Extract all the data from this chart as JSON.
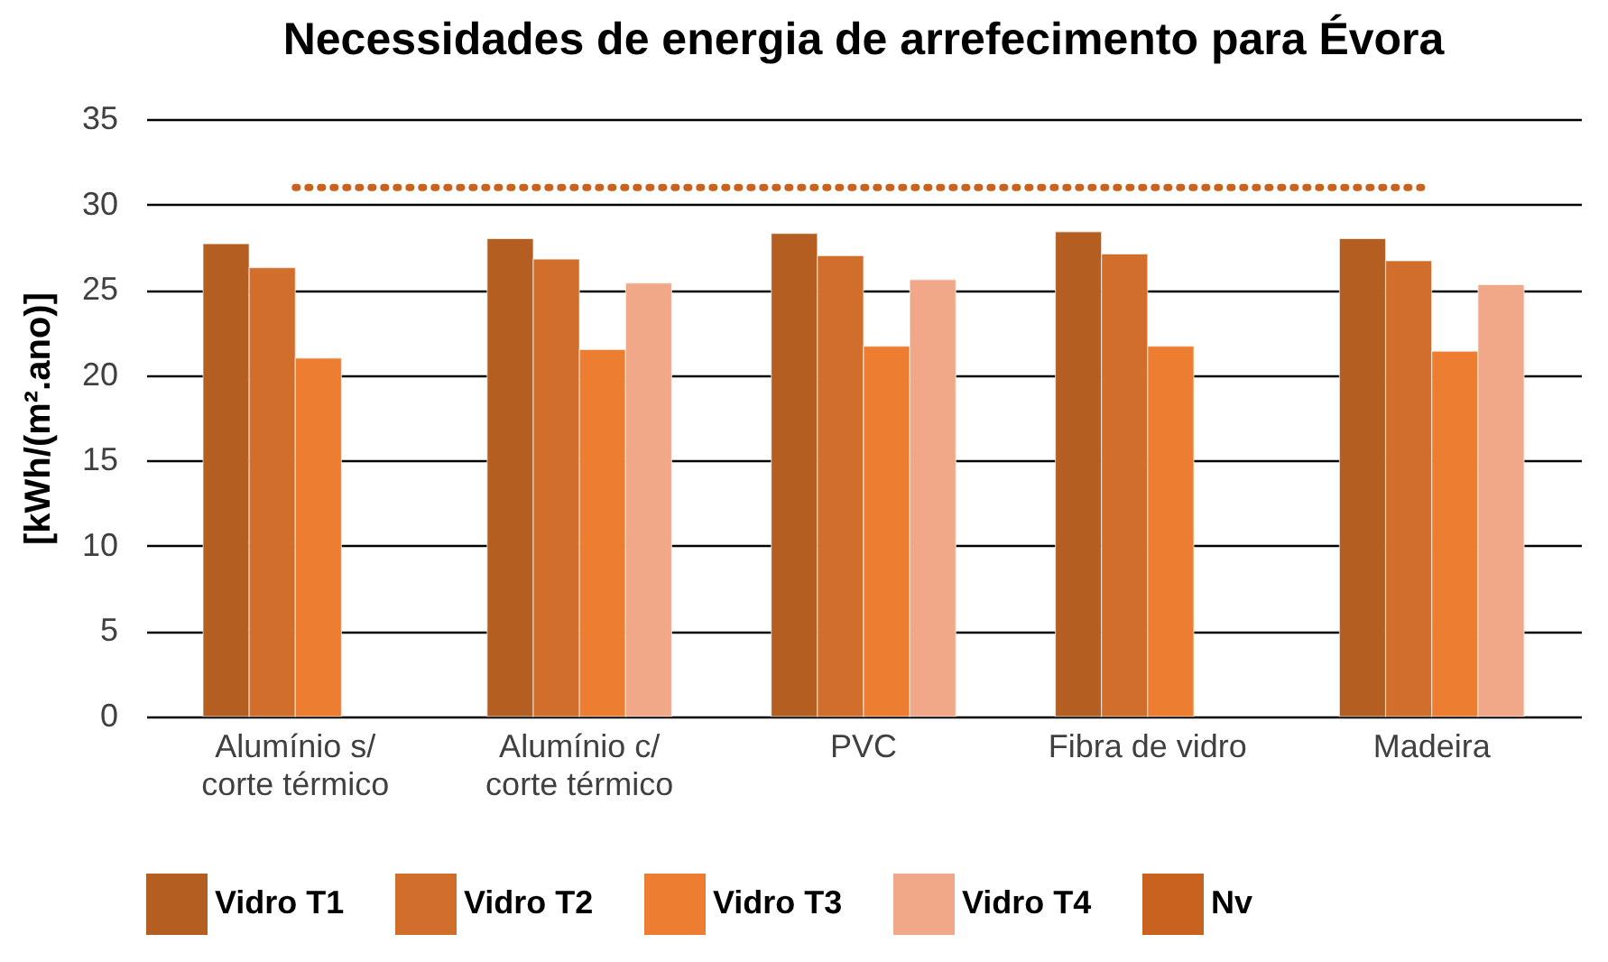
{
  "chart_data": {
    "type": "bar",
    "title": "Necessidades de energia de arrefecimento para  Évora",
    "ylabel": "[kWh/(m².ano)]",
    "categories": [
      "Alumínio s/ corte térmico",
      "Alumínio c/ corte térmico",
      "PVC",
      "Fibra de vidro",
      "Madeira"
    ],
    "series": [
      {
        "name": "Vidro T1",
        "color": "#b45e22",
        "values": [
          27.7,
          28.0,
          28.3,
          28.4,
          28.0
        ]
      },
      {
        "name": "Vidro T2",
        "color": "#d26e2b",
        "values": [
          26.3,
          26.8,
          27.0,
          27.1,
          26.7
        ]
      },
      {
        "name": "Vidro T3",
        "color": "#ec7d31",
        "values": [
          21.0,
          21.5,
          21.7,
          21.7,
          21.4
        ]
      },
      {
        "name": "Vidro T4",
        "color": "#f0a889",
        "values": [
          null,
          25.4,
          25.6,
          null,
          25.3
        ]
      },
      {
        "name": "Nv",
        "type": "line",
        "color": "#c8621e",
        "line_style": "dotted",
        "marker": "none",
        "values": [
          31,
          31,
          31,
          31,
          31
        ]
      }
    ],
    "ylim": [
      0,
      35
    ],
    "yticks": [
      0,
      5,
      10,
      15,
      20,
      25,
      30,
      35
    ],
    "grid": "y",
    "legend": "bottom"
  }
}
